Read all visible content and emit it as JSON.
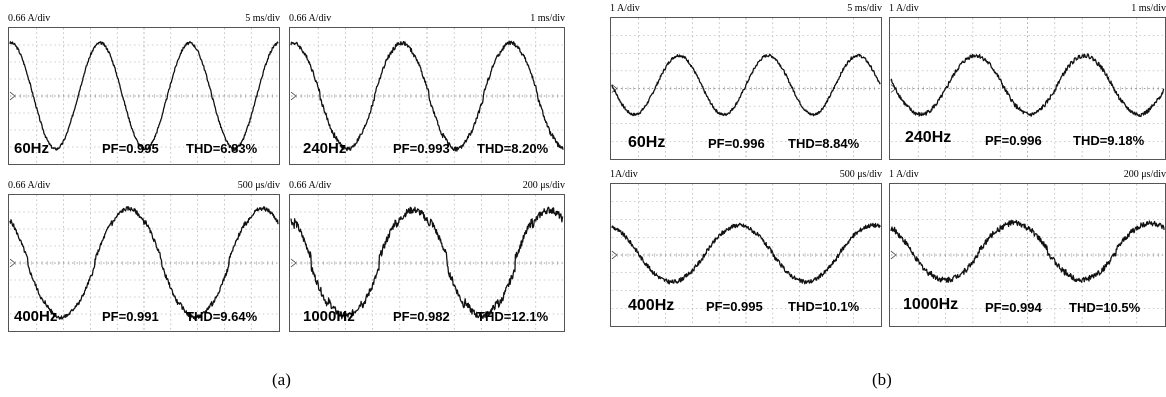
{
  "captions": [
    "(a)",
    "(b)"
  ],
  "chart_data": [
    {
      "type": "line",
      "group": "a",
      "freq": "60Hz",
      "pf": "PF=0.995",
      "thd": "THD=6.83%",
      "y_scale": "0.66 A/div",
      "x_scale": "5 ms/div",
      "cycles": 3,
      "phase": 1.5,
      "amplitude": 0.78,
      "offset": 0,
      "step": 0,
      "noise": 0.02
    },
    {
      "type": "line",
      "group": "a",
      "freq": "240Hz",
      "pf": "PF=0.993",
      "thd": "THD=8.20%",
      "y_scale": "0.66 A/div",
      "x_scale": "1 ms/div",
      "cycles": 2.5,
      "phase": 1.45,
      "amplitude": 0.78,
      "offset": 0,
      "step": 0.04,
      "noise": 0.03
    },
    {
      "type": "line",
      "group": "a",
      "freq": "400Hz",
      "pf": "PF=0.991",
      "thd": "THD=9.64%",
      "y_scale": "0.66 A/div",
      "x_scale": "500 μs/div",
      "cycles": 2,
      "phase": 2.3,
      "amplitude": 0.8,
      "offset": 0,
      "step": 0.06,
      "noise": 0.03
    },
    {
      "type": "line",
      "group": "a",
      "freq": "1000Hz",
      "pf": "PF=0.982",
      "thd": "THD=12.1%",
      "y_scale": "0.66 A/div",
      "x_scale": "200 μs/div",
      "cycles": 2,
      "phase": 2.2,
      "amplitude": 0.78,
      "offset": 0,
      "step": 0.1,
      "noise": 0.05
    },
    {
      "type": "line",
      "group": "b",
      "freq": "60Hz",
      "pf": "PF=0.996",
      "thd": "THD=8.84%",
      "y_scale": "1 A/div",
      "x_scale": "5 ms/div",
      "cycles": 3,
      "phase": 3.14,
      "amplitude": 0.42,
      "offset": 0.05,
      "step": 0,
      "noise": 0.02
    },
    {
      "type": "line",
      "group": "b",
      "freq": "240Hz",
      "pf": "PF=0.996",
      "thd": "THD=9.18%",
      "y_scale": "1 A/div",
      "x_scale": "1 ms/div",
      "cycles": 2.5,
      "phase": 3.0,
      "amplitude": 0.42,
      "offset": 0.05,
      "step": 0.02,
      "noise": 0.03
    },
    {
      "type": "line",
      "group": "b",
      "freq": "400Hz",
      "pf": "PF=0.995",
      "thd": "THD=10.1%",
      "y_scale": "1A/div",
      "x_scale": "500 μs/div",
      "cycles": 2,
      "phase": 1.9,
      "amplitude": 0.4,
      "offset": 0.02,
      "step": 0.02,
      "noise": 0.03
    },
    {
      "type": "line",
      "group": "b",
      "freq": "1000Hz",
      "pf": "PF=0.994",
      "thd": "THD=10.5%",
      "y_scale": "1 A/div",
      "x_scale": "200 μs/div",
      "cycles": 2,
      "phase": 2.2,
      "amplitude": 0.4,
      "offset": 0.05,
      "step": 0.05,
      "noise": 0.04
    }
  ]
}
